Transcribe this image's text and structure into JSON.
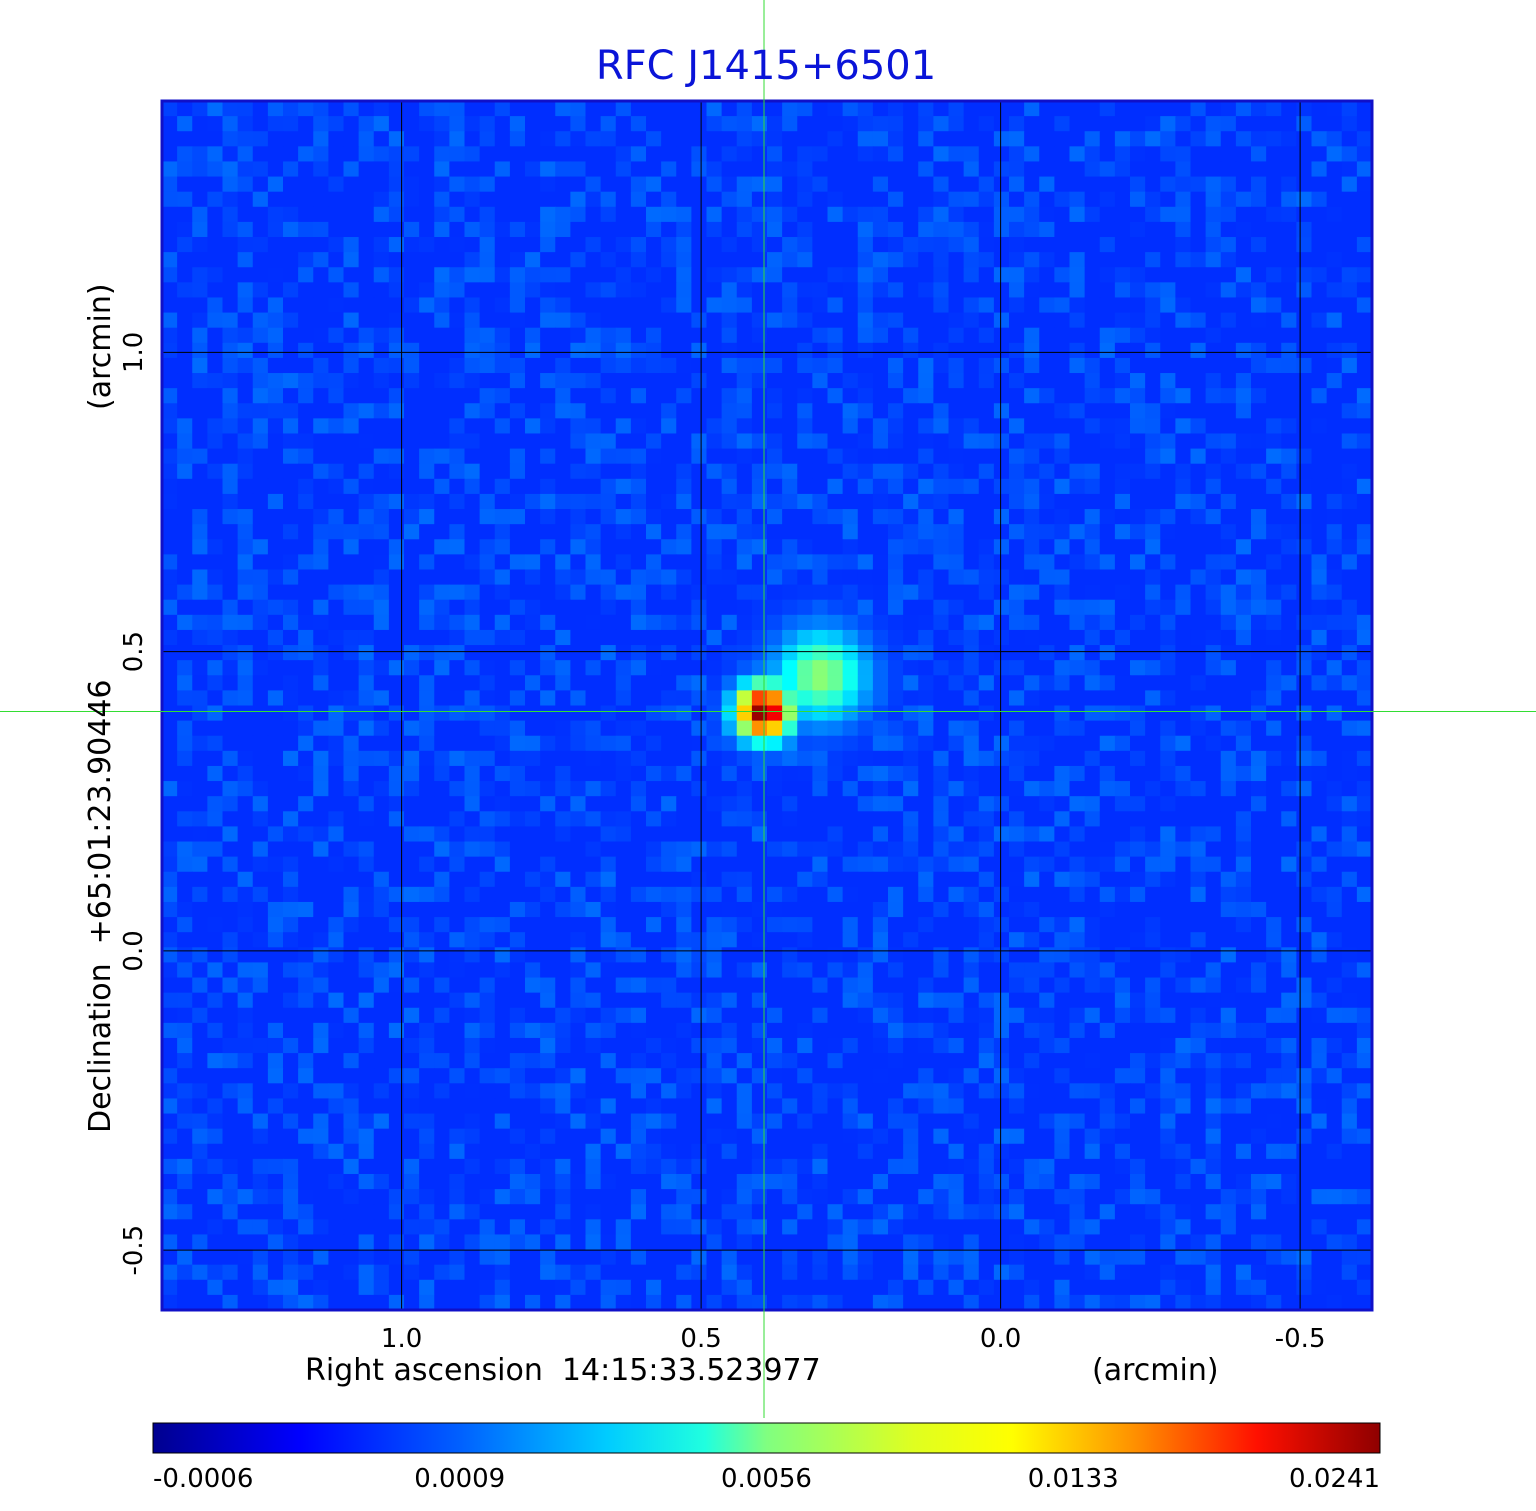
{
  "chart_data": {
    "type": "heatmap",
    "title": "RFC J1415+6501",
    "xlabel": "Right ascension  14:15:33.523977",
    "xunit": "(arcmin)",
    "ylabel": "Declination  +65:01:23.90446",
    "yunit": "(arcmin)",
    "xlim": [
      1.4,
      -0.62
    ],
    "ylim": [
      -0.6,
      1.42
    ],
    "x_ticks": [
      1.0,
      0.5,
      0.0,
      -0.5
    ],
    "x_tick_labels": [
      "1.0",
      "0.5",
      "0.0",
      "-0.5"
    ],
    "y_ticks": [
      1.0,
      0.5,
      0.0,
      -0.5
    ],
    "y_tick_labels": [
      "1.0",
      "0.5",
      "0.0",
      "-0.5"
    ],
    "grid": true,
    "crosshair": {
      "x": 0.395,
      "y": 0.4
    },
    "colormap": "jet",
    "colorbar": {
      "labels": [
        "-0.0006",
        "0.0009",
        "0.0056",
        "0.0133",
        "0.0241"
      ]
    },
    "background_level": 0.0002,
    "sources": [
      {
        "x": 0.395,
        "y": 0.4,
        "peak": 0.0241
      },
      {
        "x": 0.3,
        "y": 0.46,
        "peak": 0.0035
      }
    ],
    "colors": {
      "title": "#0a14d8",
      "frame": "#1010c8",
      "grid": "#000000",
      "crosshair": "#33dd33"
    }
  }
}
